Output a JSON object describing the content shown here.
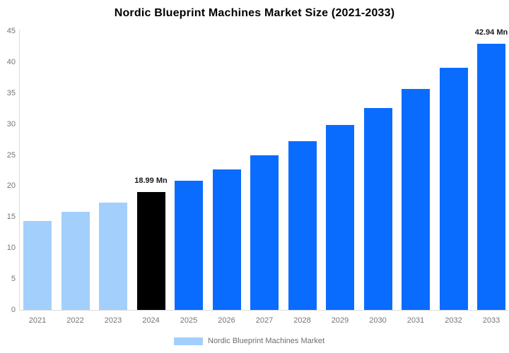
{
  "title": "Nordic Blueprint Machines Market Size (2021-2033)",
  "legend": {
    "label": "Nordic Blueprint Machines Market",
    "swatch_color": "#A3CFFC"
  },
  "colors": {
    "historical_bar": "#A3CFFC",
    "highlight_bar": "#000000",
    "forecast_bar": "#0A6CFF",
    "axis_text": "#757575",
    "axis_line": "#DDDDDD",
    "value_label_text": "#1A1A1A",
    "title_text": "#000000",
    "background": "#FFFFFF"
  },
  "chart_data": {
    "type": "bar",
    "title": "Nordic Blueprint Machines Market Size (2021-2033)",
    "xlabel": "",
    "ylabel": "",
    "unit": "Mn",
    "categories": [
      "2021",
      "2022",
      "2023",
      "2024",
      "2025",
      "2026",
      "2027",
      "2028",
      "2029",
      "2030",
      "2031",
      "2032",
      "2033"
    ],
    "values": [
      14.4,
      15.8,
      17.3,
      18.99,
      20.8,
      22.7,
      24.9,
      27.2,
      29.8,
      32.6,
      35.7,
      39.1,
      42.94
    ],
    "bar_colors": [
      "#A3CFFC",
      "#A3CFFC",
      "#A3CFFC",
      "#000000",
      "#0A6CFF",
      "#0A6CFF",
      "#0A6CFF",
      "#0A6CFF",
      "#0A6CFF",
      "#0A6CFF",
      "#0A6CFF",
      "#0A6CFF",
      "#0A6CFF"
    ],
    "annotations": [
      {
        "category": "2024",
        "text": "18.99 Mn"
      },
      {
        "category": "2033",
        "text": "42.94 Mn"
      }
    ],
    "ylim": [
      0,
      45
    ],
    "yticks": [
      0,
      5,
      10,
      15,
      20,
      25,
      30,
      35,
      40,
      45
    ],
    "grid": false,
    "legend_position": "bottom",
    "legend_entries": [
      "Nordic Blueprint Machines Market"
    ]
  }
}
